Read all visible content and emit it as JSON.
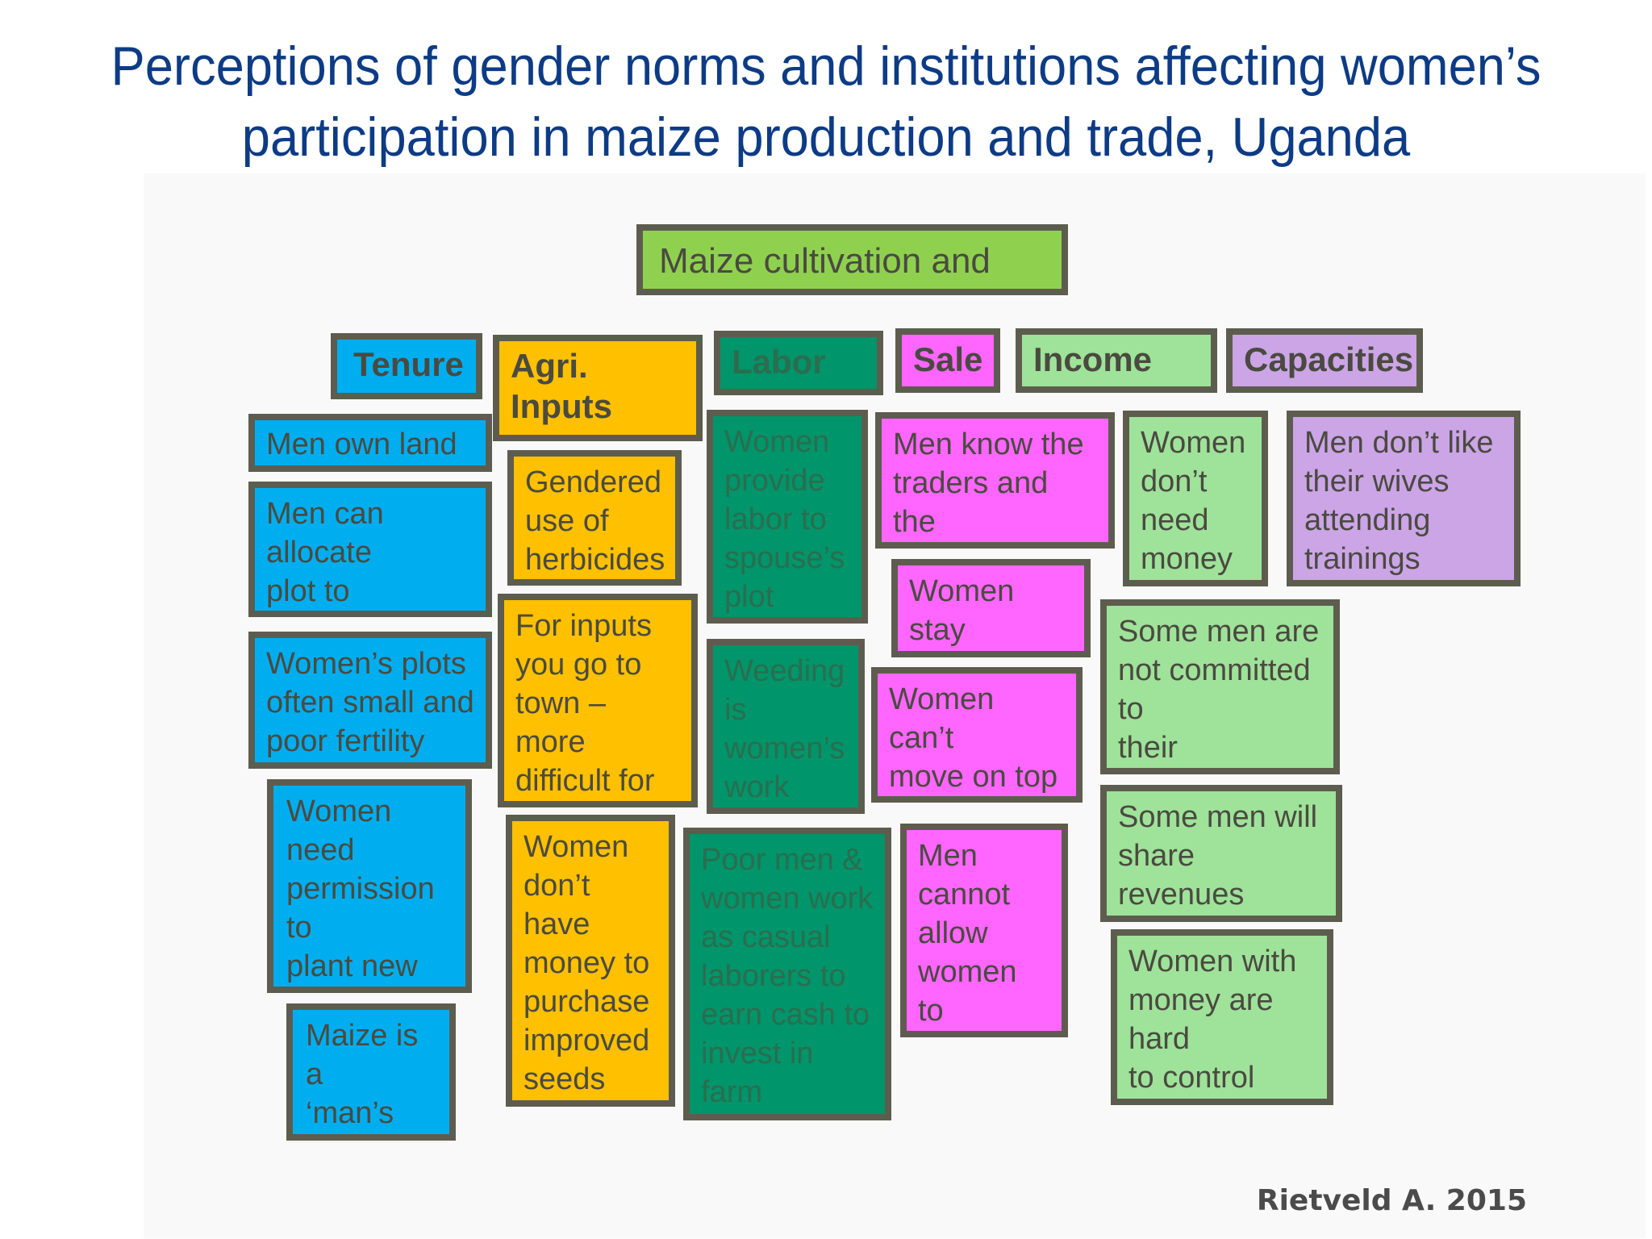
{
  "title": {
    "line1": "Perceptions of gender norms and institutions affecting women’s",
    "line2": "participation in maize production and trade, Uganda"
  },
  "root": "Maize cultivation and sale",
  "categories": {
    "tenure": "Tenure",
    "inputs": "Agri. Inputs",
    "labor": "Labor",
    "sale": "Sale",
    "income": "Income",
    "capacities": "Capacities"
  },
  "tenure_items": [
    "Men own land",
    "Men can allocate\nplot to spouse(s)",
    "Women’s plots\noften small and\npoor fertility",
    "Women need\npermission to\nplant new\ncrop",
    "Maize is a\n‘man’s\ncrop’"
  ],
  "inputs_items": [
    "Gendered\nuse of\nherbicides",
    "For inputs\nyou go to\ntown – more\ndifficult for\nwomen",
    "Women\ndon’t have\nmoney to\npurchase\nimproved\nseeds"
  ],
  "labor_items": [
    "Women\nprovide\nlabor to\nspouse’s\nplot",
    "Weeding\nis\nwomen’s\nwork",
    "Poor men &\nwomen work\nas casual\nlaborers to\nearn cash to\ninvest in farm"
  ],
  "sale_items": [
    "Men know the\ntraders and the\nprices",
    "Women stay\nat home",
    "Women can’t\nmove on top of\na lorry",
    "Men\ncannot\nallow\nwomen to\nsell"
  ],
  "income_items": [
    "Women\ndon’t\nneed\nmoney",
    "Some men are\nnot committed to\ntheir\nresponsibilities",
    "Some men will\nshare revenues\nwith wife",
    "Women with\nmoney are hard\nto control"
  ],
  "capacities_items": [
    "Men don’t like\ntheir wives\nattending\ntrainings"
  ],
  "credit": "Rietveld A. 2015",
  "colors": {
    "title": "#0d3b85",
    "tenure": "#00aeef",
    "inputs": "#ffc000",
    "labor": "#00956a",
    "sale": "#ff66ff",
    "income": "#9fe29a",
    "capacities": "#cba5e6",
    "root": "#8fd14f",
    "border": "#5d5d4f"
  }
}
